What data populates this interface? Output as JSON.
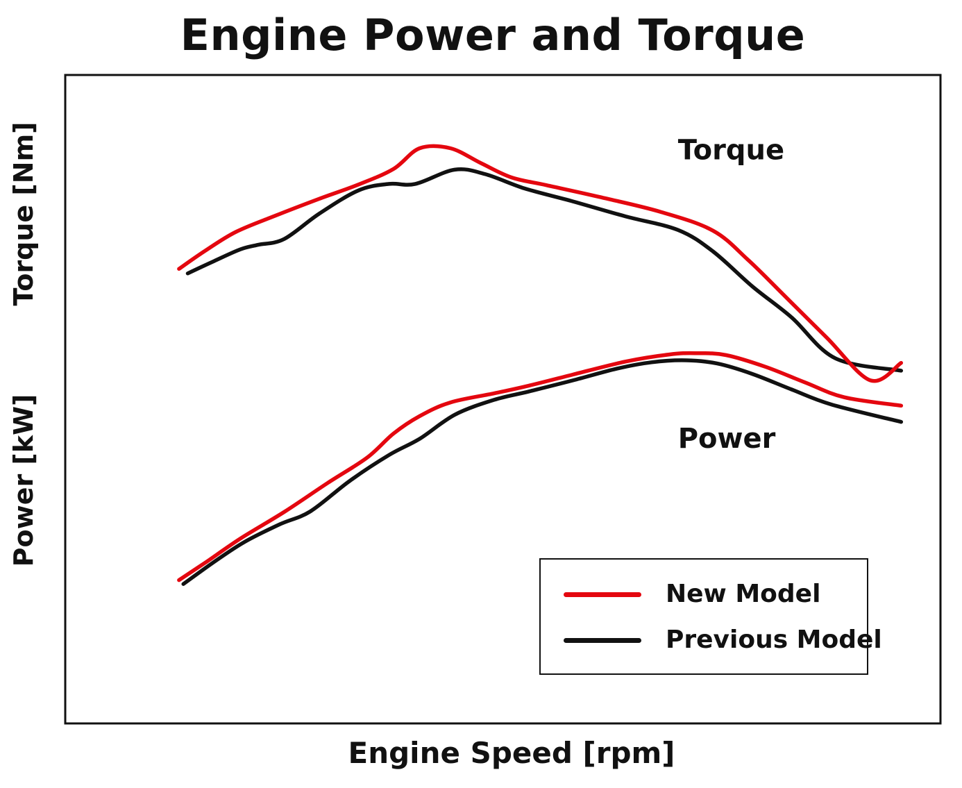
{
  "title": "Engine Power and Torque",
  "xlabel": "Engine Speed [rpm]",
  "ylabel_torque": "Torque [Nm]",
  "ylabel_power": "Power [kW]",
  "colors": {
    "new_model": "#e4070f",
    "previous_model": "#111111",
    "frame": "#111111"
  },
  "legend": {
    "placement": "bottom-right",
    "items": [
      {
        "label": "New Model",
        "color": "#e4070f"
      },
      {
        "label": "Previous Model",
        "color": "#111111"
      }
    ]
  },
  "chart_data": {
    "type": "line",
    "title": "Engine Power and Torque",
    "xlabel": "Engine Speed [rpm]",
    "ylabel": "Torque [Nm] / Power [kW]",
    "axis_ticks": "none",
    "grid": false,
    "legend_position": "bottom-right",
    "xlim": [
      0,
      100
    ],
    "ylim": [
      0,
      100
    ],
    "note_on_units": "axes are unlabeled; values are relative positions in 0-100 units",
    "groups": [
      {
        "name": "Torque",
        "series": [
          {
            "name": "New Model",
            "color": "#e4070f",
            "x": [
              13.0,
              16.0,
              19.5,
              24.0,
              29.0,
              33.5,
              37.5,
              40.5,
              44.0,
              47.5,
              51.0,
              55.0,
              61.0,
              68.0,
              74.0,
              78.0,
              82.0,
              87.0,
              92.0,
              95.5
            ],
            "y": [
              70.1,
              72.9,
              75.8,
              78.3,
              80.9,
              83.1,
              85.5,
              88.7,
              88.7,
              86.4,
              84.2,
              83.0,
              81.2,
              78.9,
              76.0,
              71.5,
              66.2,
              59.5,
              52.9,
              55.6
            ]
          },
          {
            "name": "Previous Model",
            "color": "#111111",
            "x": [
              14.0,
              17.0,
              20.0,
              22.0,
              25.0,
              29.0,
              33.5,
              37.0,
              40.0,
              44.5,
              48.0,
              52.5,
              58.0,
              64.0,
              70.0,
              74.0,
              78.5,
              83.0,
              88.0,
              95.5
            ],
            "y": [
              69.4,
              71.3,
              73.1,
              73.8,
              74.7,
              78.6,
              82.2,
              83.2,
              83.2,
              85.4,
              84.7,
              82.5,
              80.5,
              78.2,
              76.1,
              72.8,
              67.4,
              62.6,
              56.3,
              54.4
            ]
          }
        ]
      },
      {
        "name": "Power",
        "series": [
          {
            "name": "New Model",
            "color": "#e4070f",
            "x": [
              13.0,
              16.0,
              20.0,
              25.0,
              30.0,
              34.5,
              37.5,
              40.5,
              44.0,
              49.0,
              53.0,
              58.0,
              64.0,
              69.0,
              72.0,
              75.5,
              80.0,
              84.5,
              89.0,
              95.5
            ],
            "y": [
              22.1,
              24.8,
              28.5,
              32.6,
              37.1,
              41.0,
              44.7,
              47.4,
              49.5,
              50.9,
              52.1,
              53.8,
              55.8,
              56.9,
              57.1,
              56.8,
              55.0,
              52.6,
              50.3,
              49.0
            ]
          },
          {
            "name": "Previous Model",
            "color": "#111111",
            "x": [
              13.5,
              17.0,
              20.5,
              24.5,
              28.0,
              32.5,
              37.0,
              40.5,
              44.5,
              49.0,
              53.0,
              58.0,
              63.0,
              67.0,
              71.0,
              74.5,
              78.5,
              83.0,
              87.5,
              95.5
            ],
            "y": [
              21.5,
              24.9,
              28.0,
              30.7,
              32.7,
              37.4,
              41.4,
              43.9,
              47.6,
              49.9,
              51.2,
              52.9,
              54.7,
              55.7,
              56.0,
              55.5,
              53.9,
              51.5,
              49.2,
              46.5
            ]
          }
        ]
      }
    ],
    "annotations": [
      {
        "text": "Torque",
        "x": 70.0,
        "y": 87.0
      },
      {
        "text": "Power",
        "x": 70.0,
        "y": 42.5
      }
    ]
  }
}
